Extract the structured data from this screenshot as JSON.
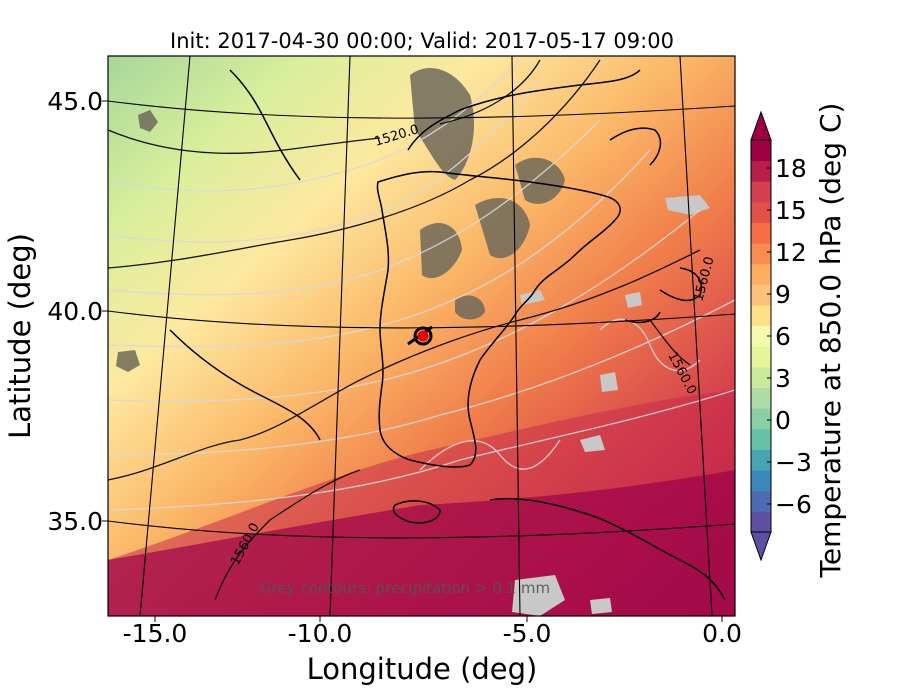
{
  "title": "Init: 2017-04-30 00:00; Valid: 2017-05-17 09:00",
  "map": {
    "xlabel": "Longitude (deg)",
    "ylabel": "Latitude (deg)",
    "xticks": [
      "-15.0",
      "-10.0",
      "-5.0",
      "0.0"
    ],
    "yticks": [
      "45.0",
      "40.0",
      "35.0"
    ],
    "contour_labels": [
      "1520.0",
      "1560.0",
      "1560.0",
      "1560.0"
    ],
    "annotation": "Grey contours: precipitation > 0.1 mm",
    "marker": {
      "name": "location-marker",
      "color": "#e60000"
    }
  },
  "colorbar": {
    "label": "Temperature at 850.0 hPa (deg C)",
    "ticks": [
      "18",
      "15",
      "12",
      "9",
      "6",
      "3",
      "0",
      "−3",
      "−6"
    ],
    "range": [
      -8,
      20
    ],
    "colors": [
      "#5e4fa2",
      "#4d6bb3",
      "#3c88bd",
      "#48a3b2",
      "#66c2a5",
      "#8ad0a4",
      "#abdda4",
      "#cbe99d",
      "#e6f598",
      "#f6faaf",
      "#fee08b",
      "#fec37a",
      "#fdae61",
      "#f88c51",
      "#f46d43",
      "#e25148",
      "#d53e4f",
      "#b81e48",
      "#9e0142"
    ]
  }
}
